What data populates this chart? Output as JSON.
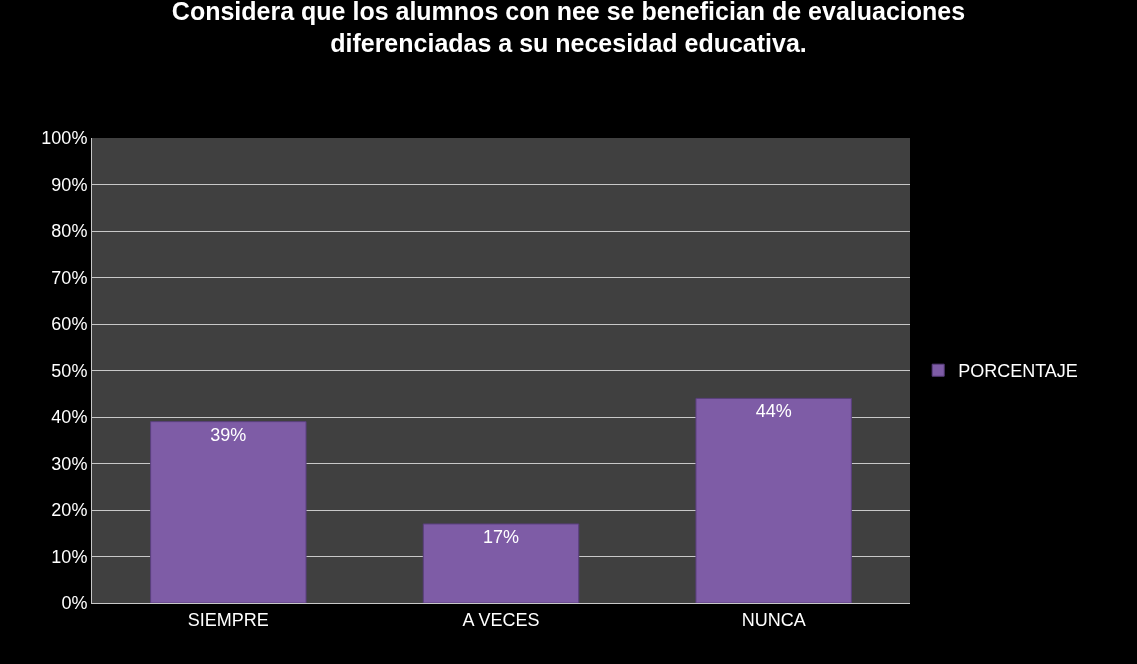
{
  "chart_data": {
    "type": "bar",
    "title": "Considera que los alumnos con nee se benefician de evaluaciones diferenciadas a su necesidad educativa.",
    "categories": [
      "SIEMPRE",
      "A VECES",
      "NUNCA"
    ],
    "series": [
      {
        "name": "PORCENTAJE",
        "color": "#7e5ca6",
        "values": [
          39,
          17,
          44
        ]
      }
    ],
    "value_labels": [
      "39%",
      "17%",
      "44%"
    ],
    "ylim": [
      0,
      100
    ],
    "yticks": [
      {
        "value": 0,
        "label": "0%"
      },
      {
        "value": 10,
        "label": "10%"
      },
      {
        "value": 20,
        "label": "20%"
      },
      {
        "value": 30,
        "label": "30%"
      },
      {
        "value": 40,
        "label": "40%"
      },
      {
        "value": 50,
        "label": "50%"
      },
      {
        "value": 60,
        "label": "60%"
      },
      {
        "value": 70,
        "label": "70%"
      },
      {
        "value": 80,
        "label": "80%"
      },
      {
        "value": 90,
        "label": "90%"
      },
      {
        "value": 100,
        "label": "100%"
      }
    ],
    "grid": "y",
    "legend": "right"
  }
}
